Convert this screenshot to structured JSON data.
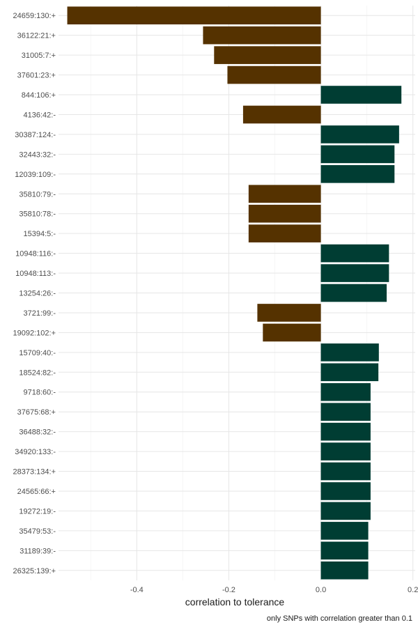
{
  "chart_data": {
    "type": "bar",
    "orientation": "horizontal",
    "xlabel": "correlation to tolerance",
    "caption": "only SNPs with correlation greater than 0.1",
    "xlim": [
      -0.57,
      0.205
    ],
    "xticks": [
      -0.4,
      -0.2,
      0.0,
      0.2
    ],
    "xtick_labels": [
      "-0.4",
      "-0.2",
      "0.0",
      "0.2"
    ],
    "grid": true,
    "colors": {
      "negative": "#553200",
      "positive": "#003d33"
    },
    "categories": [
      "24659:130:+",
      "36122:21:+",
      "31005:7:+",
      "37601:23:+",
      "844:106:+",
      "4136:42:-",
      "30387:124:-",
      "32443:32:-",
      "12039:109:-",
      "35810:79:-",
      "35810:78:-",
      "15394:5:-",
      "10948:116:-",
      "10948:113:-",
      "13254:26:-",
      "3721:99:-",
      "19092:102:+",
      "15709:40:-",
      "18524:82:-",
      "9718:60:-",
      "37675:68:+",
      "36488:32:-",
      "34920:133:-",
      "28373:134:+",
      "24565:66:+",
      "19272:19:-",
      "35479:53:-",
      "31189:39:-",
      "26325:139:+"
    ],
    "values": [
      -0.551,
      -0.256,
      -0.232,
      -0.203,
      0.175,
      -0.169,
      0.17,
      0.16,
      0.16,
      -0.157,
      -0.157,
      -0.157,
      0.148,
      0.148,
      0.143,
      -0.138,
      -0.126,
      0.126,
      0.125,
      0.108,
      0.108,
      0.108,
      0.108,
      0.108,
      0.108,
      0.108,
      0.103,
      0.103,
      0.103
    ]
  }
}
